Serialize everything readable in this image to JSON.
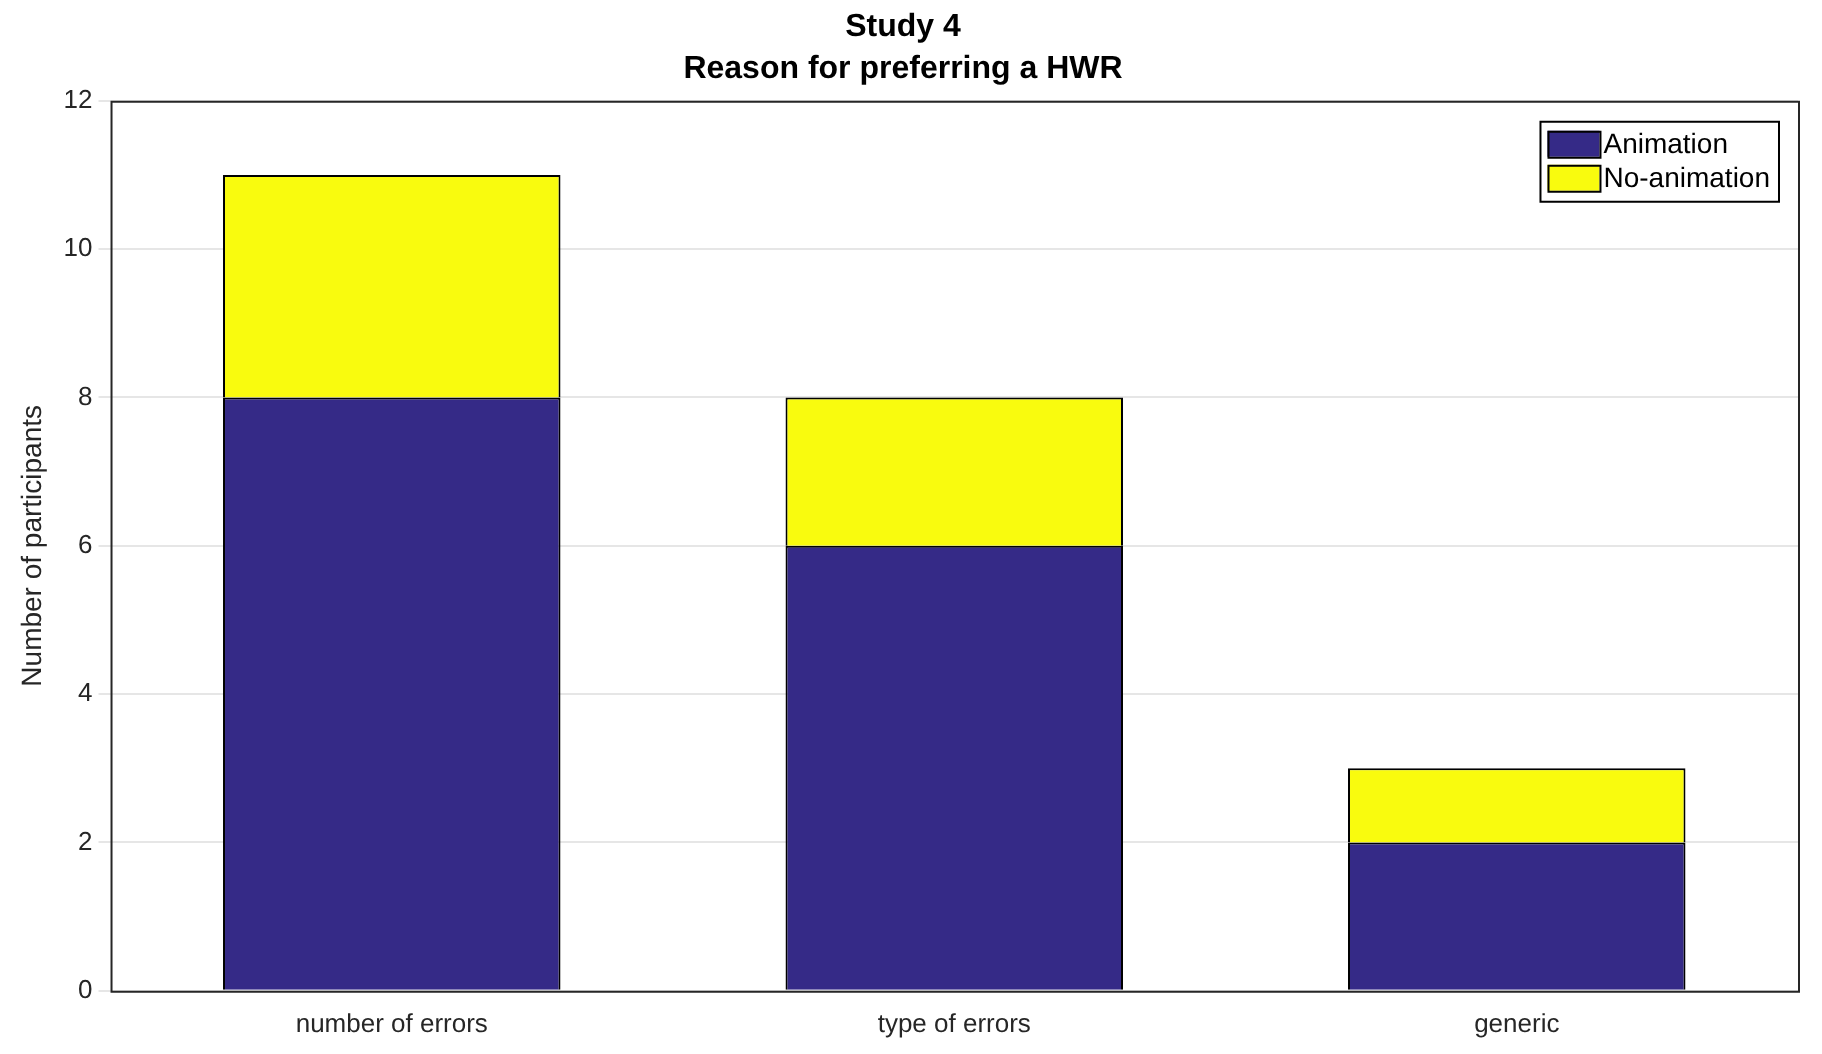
{
  "chart_data": {
    "type": "bar",
    "title": "Study 4",
    "subtitle": "Reason for preferring a HWR",
    "ylabel": "Number of participants",
    "categories": [
      "number of errors",
      "type of errors",
      "generic"
    ],
    "stacked": true,
    "series": [
      {
        "name": "Animation",
        "color": "#352a87",
        "values": [
          8,
          6,
          2
        ]
      },
      {
        "name": "No-animation",
        "color": "#f9fb0e",
        "values": [
          3,
          2,
          1
        ]
      }
    ],
    "ylim": [
      0,
      12
    ],
    "yticks": [
      0,
      2,
      4,
      6,
      8,
      10,
      12
    ],
    "grid": "y",
    "legend": "top right"
  }
}
